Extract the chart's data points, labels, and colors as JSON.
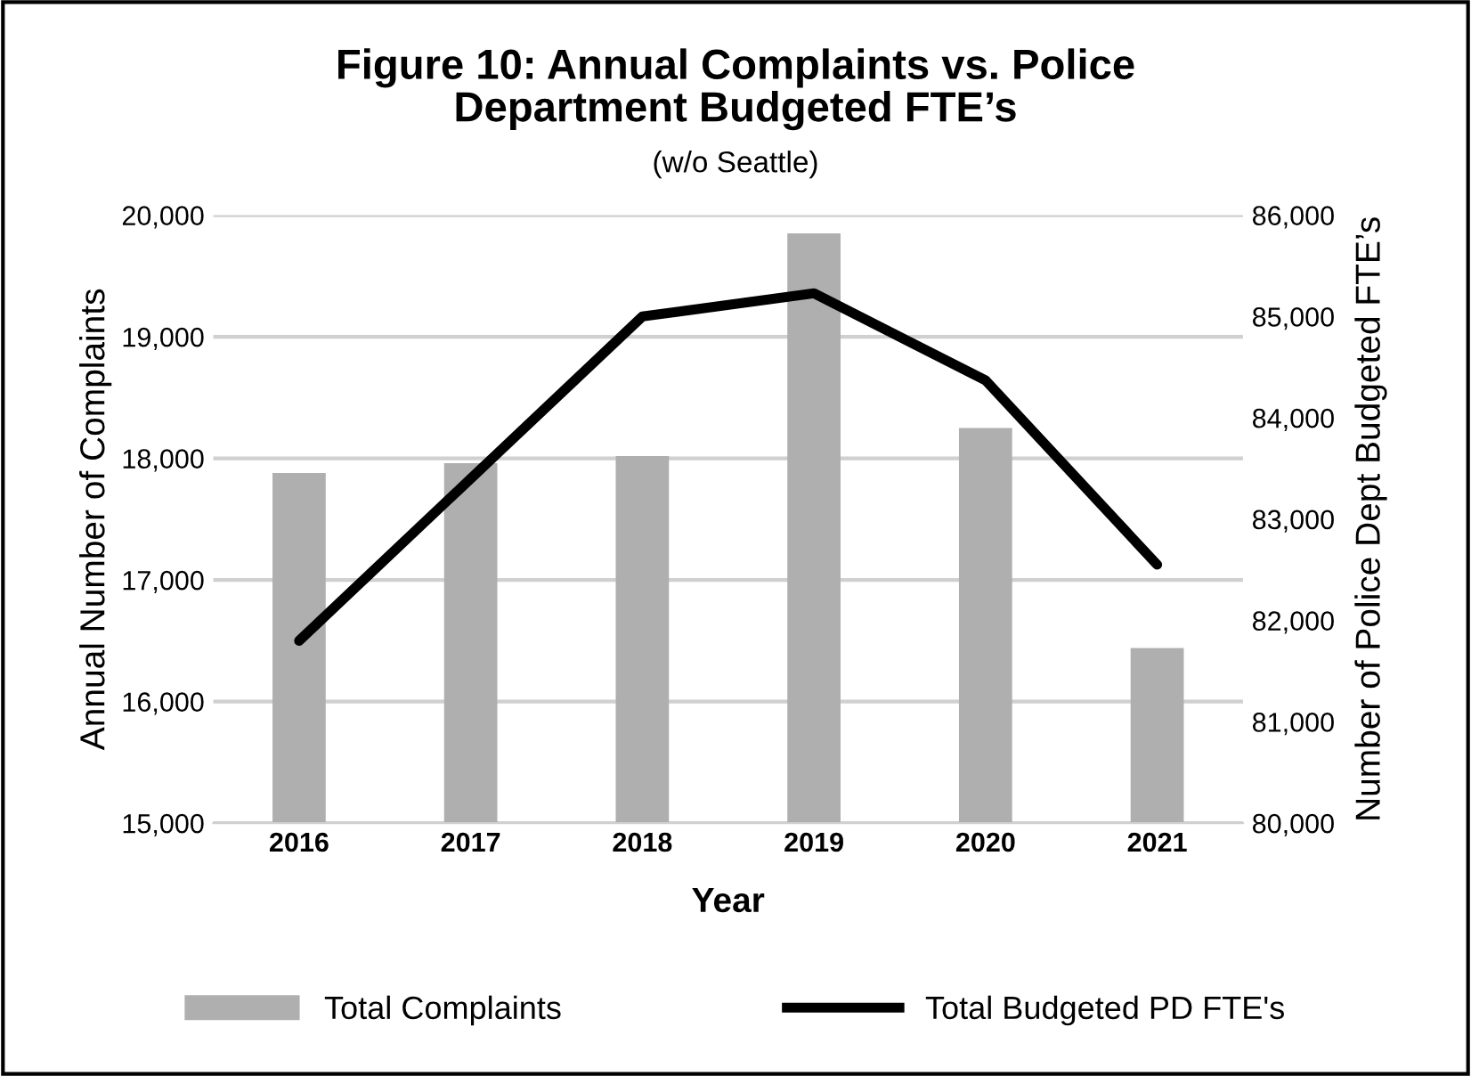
{
  "chart_data": {
    "type": "bar",
    "title": "Figure 10: Annual Complaints vs. Police\nDepartment Budgeted FTE’s",
    "subtitle": "(w/o Seattle)",
    "xlabel": "Year",
    "ylabel": "Annual Number of Complaints",
    "y2label": "Number of Police Dept Budgeted FTE’s",
    "categories": [
      "2016",
      "2017",
      "2018",
      "2019",
      "2020",
      "2021"
    ],
    "series": [
      {
        "name": "Total Complaints",
        "color": "#afafaf",
        "values": [
          17880,
          17960,
          18020,
          19850,
          18250,
          16440
        ]
      },
      {
        "name": "Total Budgeted PD FTE's",
        "type": "line",
        "axis": "y2",
        "color": "#000000",
        "values": [
          81800,
          83400,
          85000,
          85230,
          84370,
          82550
        ]
      }
    ],
    "ylim": [
      15000,
      20000
    ],
    "yticks": [
      {
        "value": 15000,
        "label": "15,000"
      },
      {
        "value": 16000,
        "label": "16,000"
      },
      {
        "value": 17000,
        "label": "17,000"
      },
      {
        "value": 18000,
        "label": "18,000"
      },
      {
        "value": 19000,
        "label": "19,000"
      },
      {
        "value": 20000,
        "label": "20,000"
      }
    ],
    "y2lim": [
      80000,
      86000
    ],
    "y2ticks": [
      {
        "value": 80000,
        "label": "80,000"
      },
      {
        "value": 81000,
        "label": "81,000"
      },
      {
        "value": 82000,
        "label": "82,000"
      },
      {
        "value": 83000,
        "label": "83,000"
      },
      {
        "value": 84000,
        "label": "84,000"
      },
      {
        "value": 85000,
        "label": "85,000"
      },
      {
        "value": 86000,
        "label": "86,000"
      }
    ],
    "grid": "y",
    "legend": "bottom"
  }
}
